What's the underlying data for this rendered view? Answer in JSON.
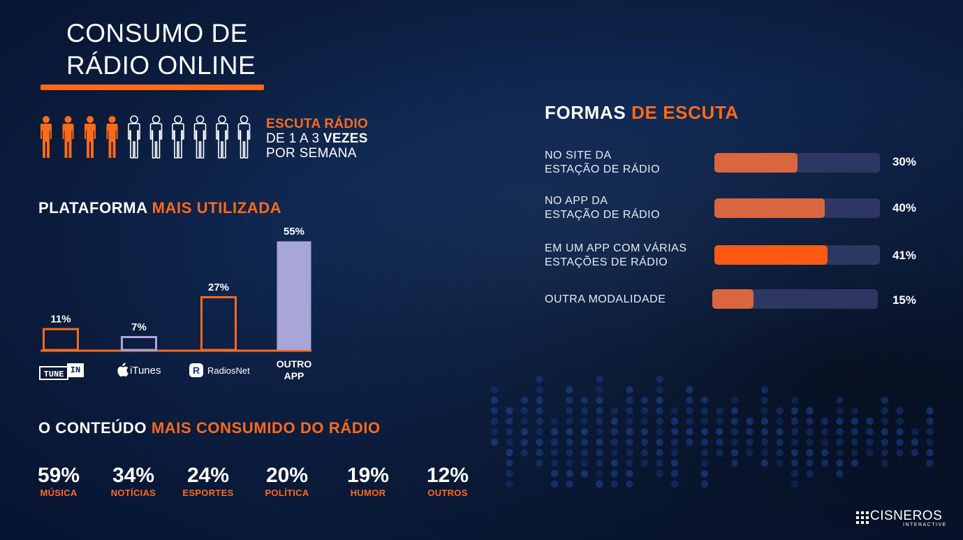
{
  "colors": {
    "accent": "#ff6a1a",
    "bar_light": "#a8a6d8",
    "background": "#0b1c3d",
    "person_inactive": "#ffffff"
  },
  "title": {
    "line1": "CONSUMO DE",
    "line2": "RÁDIO ONLINE"
  },
  "frequency": {
    "icon": "person-icon",
    "highlighted_people": 4,
    "total_people": 10,
    "line1": "ESCUTA RÁDIO",
    "line2_prefix": "DE 1 A 3 ",
    "line2_bold": "VEZES",
    "line3": "POR SEMANA"
  },
  "platform": {
    "title_white": "PLATAFORMA ",
    "title_orange": "MAIS UTILIZADA",
    "logos": {
      "tunein_left": "TUNE",
      "tunein_right": "IN",
      "itunes": "iTunes",
      "radiosnet": "RadiosNet",
      "outro_line1": "OUTRO",
      "outro_line2": "APP"
    }
  },
  "content": {
    "title_white": "O CONTEÚDO ",
    "title_orange": "MAIS CONSUMIDO DO RÁDIO",
    "stats": [
      {
        "value": "59%",
        "label": "MÚSICA"
      },
      {
        "value": "34%",
        "label": "NOTÍCIAS"
      },
      {
        "value": "24%",
        "label": "ESPORTES"
      },
      {
        "value": "20%",
        "label": "POLÍTICA"
      },
      {
        "value": "19%",
        "label": "HUMOR"
      },
      {
        "value": "12%",
        "label": "OUTROS"
      }
    ]
  },
  "forms": {
    "title_white": "FORMAS ",
    "title_orange": "DE ESCUTA",
    "rows": [
      {
        "line1": "NO SITE DA",
        "line2": "ESTAÇÃO DE RÁDIO",
        "pct": "30%",
        "value": 30,
        "fill_color": "#d9663f"
      },
      {
        "line1": "NO APP DA",
        "line2": "ESTAÇÃO DE RÁDIO",
        "pct": "40%",
        "value": 40,
        "fill_color": "#d9663f"
      },
      {
        "line1": "EM UM APP COM VÁRIAS",
        "line2": "ESTAÇÕES DE RÁDIO",
        "pct": "41%",
        "value": 41,
        "fill_color": "#ff5a14"
      },
      {
        "line1": "OUTRA MODALIDADE",
        "line2": "",
        "pct": "15%",
        "value": 15,
        "fill_color": "#d9663f"
      }
    ]
  },
  "brand": {
    "name": "CISNEROS",
    "sub": "INTERACTIVE"
  },
  "chart_data": [
    {
      "type": "bar",
      "title": "PLATAFORMA MAIS UTILIZADA",
      "categories": [
        "TuneIn",
        "iTunes",
        "RadiosNet",
        "OUTRO APP"
      ],
      "values": [
        11,
        7,
        27,
        55
      ],
      "labels": [
        "11%",
        "7%",
        "27%",
        "55%"
      ],
      "styles": [
        "outline-orange",
        "outline-light",
        "outline-orange",
        "filled-light"
      ],
      "ylim": [
        0,
        55
      ]
    },
    {
      "type": "bar",
      "orientation": "horizontal",
      "title": "FORMAS DE ESCUTA",
      "categories": [
        "NO SITE DA ESTAÇÃO DE RÁDIO",
        "NO APP DA ESTAÇÃO DE RÁDIO",
        "EM UM APP COM VÁRIAS ESTAÇÕES DE RÁDIO",
        "OUTRA MODALIDADE"
      ],
      "values": [
        30,
        40,
        41,
        15
      ],
      "xlim": [
        0,
        60
      ]
    }
  ]
}
